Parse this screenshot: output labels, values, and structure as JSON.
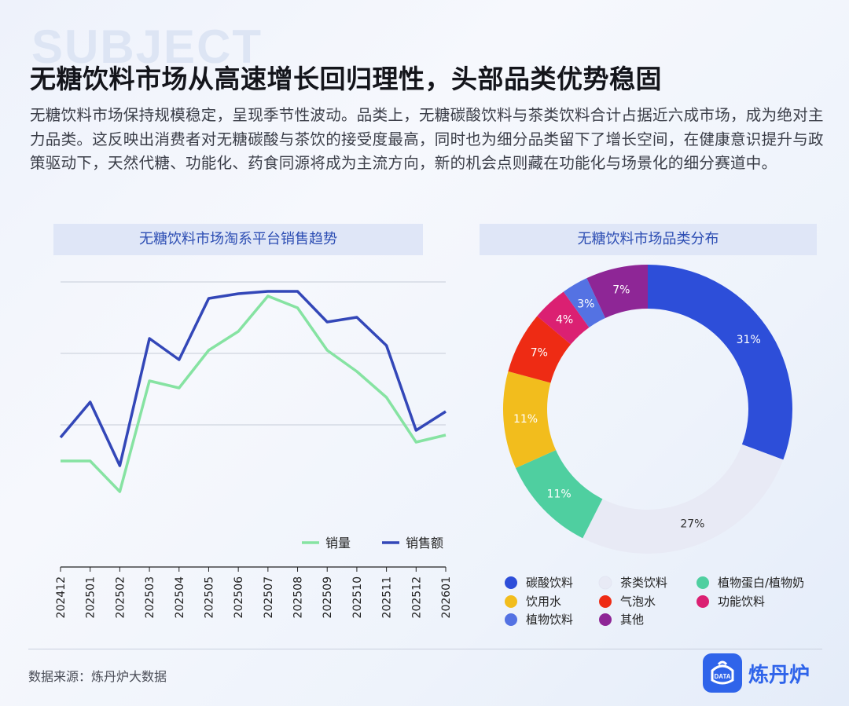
{
  "watermark": "SUBJECT",
  "headline": "无糖饮料市场从高速增长回归理性，头部品类优势稳固",
  "intro": "无糖饮料市场保持规模稳定，呈现季节性波动。品类上，无糖碳酸饮料与茶类饮料合计占据近六成市场，成为绝对主力品类。这反映出消费者对无糖碳酸与茶饮的接受度最高，同时也为细分品类留下了增长空间，在健康意识提升与政策驱动下，天然代糖、功能化、药食同源将成为主流方向，新的机会点则藏在功能化与场景化的细分赛道中。",
  "source": "数据来源：炼丹炉大数据",
  "logo": {
    "text": "炼丹炉",
    "badge_text": "DATA"
  },
  "chart_data": [
    {
      "type": "line",
      "title": "无糖饮料市场淘系平台销售趋势",
      "x": [
        "202412",
        "202501",
        "202502",
        "202503",
        "202504",
        "202505",
        "202506",
        "202507",
        "202508",
        "202509",
        "202510",
        "202511",
        "202512",
        "202601"
      ],
      "series": [
        {
          "name": "销量",
          "color": "#86e3a2",
          "values": [
            45,
            45,
            32,
            79,
            76,
            92,
            100,
            115,
            110,
            92,
            83,
            72,
            53,
            56
          ]
        },
        {
          "name": "销售额",
          "color": "#3347b8",
          "values": [
            55,
            70,
            43,
            97,
            88,
            114,
            116,
            117,
            117,
            104,
            106,
            94,
            58,
            66
          ]
        }
      ],
      "ylim": [
        0,
        130
      ],
      "grid": true,
      "legend": "bottom-right"
    },
    {
      "type": "pie",
      "title": "无糖饮料市场品类分布",
      "labels": [
        "碳酸饮料",
        "茶类饮料",
        "植物蛋白/植物奶",
        "饮用水",
        "气泡水",
        "功能饮料",
        "植物饮料",
        "其他"
      ],
      "values": [
        31,
        27,
        11,
        11,
        7,
        4,
        3,
        7
      ],
      "value_labels": [
        "31%",
        "27%",
        "11%",
        "11%",
        "7%",
        "4%",
        "3%",
        "7%"
      ],
      "colors": [
        "#2d4ed9",
        "#e8eaf5",
        "#4fcfa0",
        "#f2bd1d",
        "#ee2b14",
        "#db2072",
        "#5472e3",
        "#8e2696"
      ],
      "label_colors": [
        "#ffffff",
        "#333333",
        "#ffffff",
        "#ffffff",
        "#ffffff",
        "#ffffff",
        "#ffffff",
        "#ffffff"
      ],
      "donut": true,
      "legend": "bottom"
    }
  ]
}
